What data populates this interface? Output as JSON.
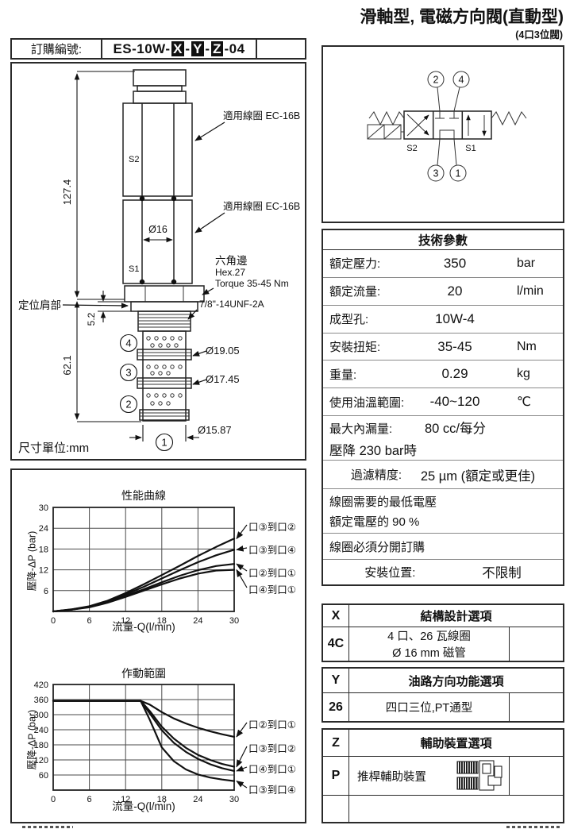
{
  "page": {
    "title": "滑軸型, 電磁方向閥(直動型)",
    "subtitle": "(4口3位閥)"
  },
  "order": {
    "label": "訂購編號:",
    "prefix": "ES-10W-",
    "x": "X",
    "sep1": "-",
    "y": "Y",
    "sep2": "-",
    "z": "Z",
    "suffix": "-04"
  },
  "drawing": {
    "dim_overall": "127.4",
    "dim_lower": "62.1",
    "dim_shoulder": "5.2",
    "coil_note_1": "適用線圈 EC-16B",
    "coil_note_2": "適用線圈 EC-16B",
    "hex_1": "六角邊",
    "hex_2": "Hex.27",
    "hex_3": "Torque 35-45 Nm",
    "thread": "7/8\"-14UNF-2A",
    "shoulder": "定位肩部",
    "s2": "S2",
    "s1": "S1",
    "dia_tube": "Ø16",
    "dia_19": "Ø19.05",
    "dia_17": "Ø17.45",
    "dia_15": "Ø15.87",
    "p4": "4",
    "p3": "3",
    "p2": "2",
    "p1": "1",
    "units": "尺寸單位:mm"
  },
  "symbol": {
    "p2": "2",
    "p4": "4",
    "p3": "3",
    "p1": "1",
    "s2": "S2",
    "s1": "S1"
  },
  "tech": {
    "header": "技術參數",
    "rows": [
      {
        "label": "額定壓力:",
        "value": "350",
        "unit": "bar"
      },
      {
        "label": "額定流量:",
        "value": "20",
        "unit": "l/min"
      },
      {
        "label": "成型孔:",
        "value": "10W-4",
        "unit": ""
      },
      {
        "label": "安裝扭矩:",
        "value": "35-45",
        "unit": "Nm"
      },
      {
        "label": "重量:",
        "value": "0.29",
        "unit": "kg"
      },
      {
        "label": "使用油溫範圍:",
        "value": "-40~120",
        "unit": "℃"
      }
    ],
    "leak_label": "最大內漏量:",
    "leak_value": "80 cc/每分",
    "leak_line2": "壓降 230 bar時",
    "filter_label": "過濾精度:",
    "filter_value": "25 µm (額定或更佳)",
    "coil_volt_1": "線圈需要的最低電壓",
    "coil_volt_2": "額定電壓的 90 %",
    "coil_order": "線圈必須分開訂購",
    "mount_label": "安裝位置:",
    "mount_value": "不限制"
  },
  "options": {
    "x": {
      "code": "X",
      "header": "結構設計選項",
      "row_code": "4C",
      "desc1": "4 口、26 瓦線圈",
      "desc2": "Ø 16 mm 磁管"
    },
    "y": {
      "code": "Y",
      "header": "油路方向功能選項",
      "row_code": "26",
      "desc1": "四口三位,PT通型",
      "desc2": ""
    },
    "z": {
      "code": "Z",
      "header": "輔助裝置選項",
      "row_code": "P",
      "desc1": "推桿輔助裝置",
      "desc2": ""
    }
  },
  "chart_data": [
    {
      "type": "line",
      "title": "性能曲線",
      "xlabel": "流量-Q(l/min)",
      "ylabel": "壓降-ΔP (bar)",
      "xlim": [
        0,
        30
      ],
      "ylim": [
        0,
        30
      ],
      "xticks": [
        0,
        6,
        12,
        18,
        24,
        30
      ],
      "yticks": [
        6,
        12,
        18,
        24,
        30
      ],
      "grid": true,
      "legend_position": "right",
      "series": [
        {
          "name": "口③到口②",
          "x": [
            0,
            3,
            6,
            9,
            12,
            15,
            18,
            21,
            24,
            27,
            30
          ],
          "y": [
            0,
            0.6,
            1.5,
            3.1,
            5.3,
            7.8,
            10.5,
            13.2,
            16,
            18.6,
            21
          ]
        },
        {
          "name": "口③到口④",
          "x": [
            0,
            3,
            6,
            9,
            12,
            15,
            18,
            21,
            24,
            27,
            30
          ],
          "y": [
            0,
            0.55,
            1.4,
            2.9,
            4.9,
            7.1,
            9.5,
            11.9,
            14.2,
            16.2,
            17.8
          ]
        },
        {
          "name": "口②到口①",
          "x": [
            0,
            3,
            6,
            9,
            12,
            15,
            18,
            21,
            24,
            27,
            30
          ],
          "y": [
            0,
            0.5,
            1.3,
            2.7,
            4.5,
            6.4,
            8.4,
            10.3,
            11.9,
            13.1,
            13.7
          ]
        },
        {
          "name": "口④到口①",
          "x": [
            0,
            3,
            6,
            9,
            12,
            15,
            18,
            21,
            24,
            27,
            30
          ],
          "y": [
            0,
            0.5,
            1.2,
            2.5,
            4.2,
            6,
            7.8,
            9.5,
            10.9,
            11.8,
            12
          ]
        }
      ]
    },
    {
      "type": "line",
      "title": "作動範圍",
      "xlabel": "流量-Q(l/min)",
      "ylabel": "壓降-ΔP (bar)",
      "xlim": [
        0,
        30
      ],
      "ylim": [
        0,
        420
      ],
      "xticks": [
        0,
        6,
        12,
        18,
        24,
        30
      ],
      "yticks": [
        60,
        120,
        180,
        240,
        300,
        360,
        420
      ],
      "grid": true,
      "legend_position": "right",
      "series": [
        {
          "name": "口②到口①",
          "x": [
            0,
            14.5,
            16,
            18,
            20,
            22,
            24,
            26,
            28,
            30
          ],
          "y": [
            355,
            355,
            340,
            310,
            285,
            265,
            248,
            234,
            222,
            212
          ]
        },
        {
          "name": "口③到口②",
          "x": [
            0,
            14.5,
            16,
            18,
            20,
            22,
            24,
            26,
            28,
            30
          ],
          "y": [
            355,
            355,
            315,
            252,
            205,
            168,
            140,
            120,
            104,
            93
          ]
        },
        {
          "name": "口④到口①",
          "x": [
            0,
            14.5,
            16,
            18,
            20,
            22,
            24,
            26,
            28,
            30
          ],
          "y": [
            355,
            355,
            305,
            238,
            188,
            152,
            124,
            103,
            87,
            76
          ]
        },
        {
          "name": "口③到口④",
          "x": [
            0,
            14.5,
            16,
            18,
            20,
            22,
            24,
            26,
            28,
            30
          ],
          "y": [
            355,
            355,
            280,
            170,
            115,
            82,
            62,
            50,
            42,
            36
          ]
        }
      ]
    }
  ]
}
